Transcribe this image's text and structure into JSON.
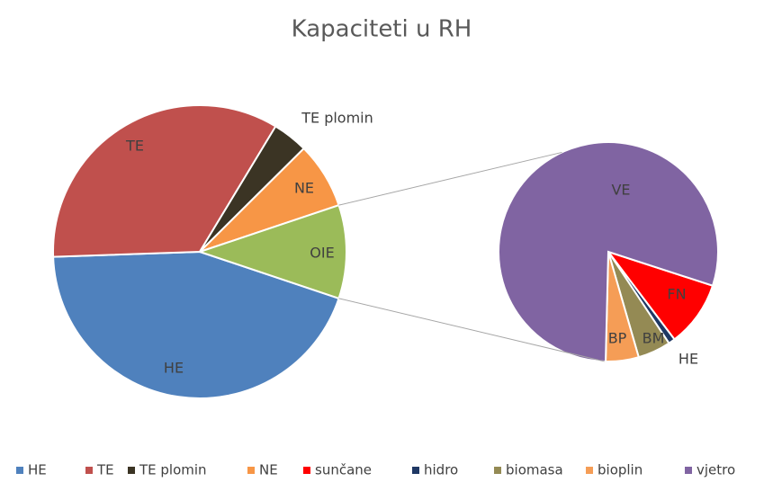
{
  "chart_data": {
    "type": "pie-of-pie",
    "title": "Kapaciteti u RH",
    "categories": [
      "HE",
      "TE",
      "TE plomin",
      "NE",
      "sunčane",
      "hidro",
      "biomasa",
      "bioplin",
      "vjetro"
    ],
    "values": [
      44.3,
      34.2,
      3.9,
      7.3,
      1.0,
      0.1,
      0.5,
      0.5,
      8.2
    ],
    "colors": [
      "#4f81bd",
      "#c0504d",
      "#3b3424",
      "#f79646",
      "#ff0000",
      "#1f3864",
      "#948a54",
      "#f59d56",
      "#8064a2"
    ],
    "second_pie_count": 5,
    "slice_labels": [
      "HE",
      "TE",
      "TE plomin",
      "NE",
      "FN",
      "HE",
      "BM",
      "BP",
      "VE"
    ],
    "other_label": "OIE",
    "legend": "bottom"
  }
}
